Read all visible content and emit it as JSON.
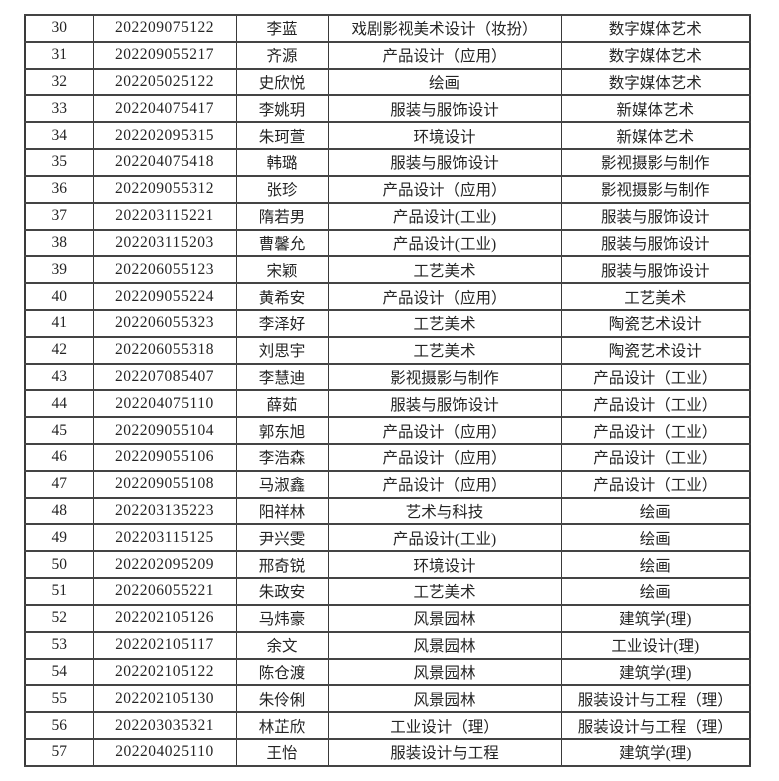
{
  "page": {
    "background_color": "#ffffff",
    "border_color": "#3a3a3a",
    "text_color": "#242424"
  },
  "table": {
    "column_names": [
      "row-number",
      "student-id",
      "name",
      "original-major",
      "target-major"
    ],
    "rows": [
      [
        "30",
        "202209075122",
        "李蓝",
        "戏剧影视美术设计（妆扮）",
        "数字媒体艺术"
      ],
      [
        "31",
        "202209055217",
        "齐源",
        "产品设计（应用）",
        "数字媒体艺术"
      ],
      [
        "32",
        "202205025122",
        "史欣悦",
        "绘画",
        "数字媒体艺术"
      ],
      [
        "33",
        "202204075417",
        "李姚玥",
        "服装与服饰设计",
        "新媒体艺术"
      ],
      [
        "34",
        "202202095315",
        "朱珂萱",
        "环境设计",
        "新媒体艺术"
      ],
      [
        "35",
        "202204075418",
        "韩璐",
        "服装与服饰设计",
        "影视摄影与制作"
      ],
      [
        "36",
        "202209055312",
        "张珍",
        "产品设计（应用）",
        "影视摄影与制作"
      ],
      [
        "37",
        "202203115221",
        "隋若男",
        "产品设计(工业)",
        "服装与服饰设计"
      ],
      [
        "38",
        "202203115203",
        "曹馨允",
        "产品设计(工业)",
        "服装与服饰设计"
      ],
      [
        "39",
        "202206055123",
        "宋颖",
        "工艺美术",
        "服装与服饰设计"
      ],
      [
        "40",
        "202209055224",
        "黄希安",
        "产品设计（应用）",
        "工艺美术"
      ],
      [
        "41",
        "202206055323",
        "李泽好",
        "工艺美术",
        "陶瓷艺术设计"
      ],
      [
        "42",
        "202206055318",
        "刘思宇",
        "工艺美术",
        "陶瓷艺术设计"
      ],
      [
        "43",
        "202207085407",
        "李慧迪",
        "影视摄影与制作",
        "产品设计（工业）"
      ],
      [
        "44",
        "202204075110",
        "薛茹",
        "服装与服饰设计",
        "产品设计（工业）"
      ],
      [
        "45",
        "202209055104",
        "郭东旭",
        "产品设计（应用）",
        "产品设计（工业）"
      ],
      [
        "46",
        "202209055106",
        "李浩森",
        "产品设计（应用）",
        "产品设计（工业）"
      ],
      [
        "47",
        "202209055108",
        "马淑鑫",
        "产品设计（应用）",
        "产品设计（工业）"
      ],
      [
        "48",
        "202203135223",
        "阳祥林",
        "艺术与科技",
        "绘画"
      ],
      [
        "49",
        "202203115125",
        "尹兴雯",
        "产品设计(工业)",
        "绘画"
      ],
      [
        "50",
        "202202095209",
        "邢奇锐",
        "环境设计",
        "绘画"
      ],
      [
        "51",
        "202206055221",
        "朱政安",
        "工艺美术",
        "绘画"
      ],
      [
        "52",
        "202202105126",
        "马炜豪",
        "风景园林",
        "建筑学(理)"
      ],
      [
        "53",
        "202202105117",
        "余文",
        "风景园林",
        "工业设计(理)"
      ],
      [
        "54",
        "202202105122",
        "陈仓渡",
        "风景园林",
        "建筑学(理)"
      ],
      [
        "55",
        "202202105130",
        "朱伶俐",
        "风景园林",
        "服装设计与工程（理）"
      ],
      [
        "56",
        "202203035321",
        "林芷欣",
        "工业设计（理）",
        "服装设计与工程（理）"
      ],
      [
        "57",
        "202204025110",
        "王怡",
        "服装设计与工程",
        "建筑学(理)"
      ]
    ]
  }
}
